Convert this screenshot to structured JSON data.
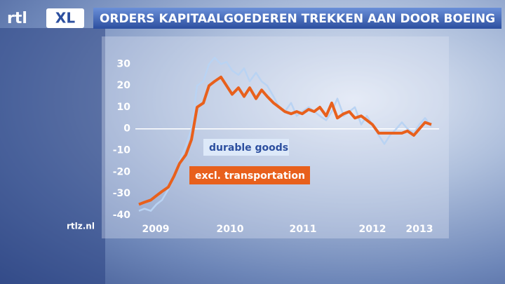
{
  "screen": {
    "logo_main": "rtl",
    "logo_badge": "XL",
    "site": "rtlz.nl"
  },
  "chart_data": {
    "type": "line",
    "title": "ORDERS KAPITAALGOEDEREN TREKKEN AAN DOOR BOEING",
    "x": [
      2009,
      2009.08,
      2009.17,
      2009.25,
      2009.33,
      2009.42,
      2009.5,
      2009.58,
      2009.67,
      2009.75,
      2009.83,
      2009.92,
      2010,
      2010.08,
      2010.17,
      2010.25,
      2010.33,
      2010.42,
      2010.5,
      2010.58,
      2010.67,
      2010.75,
      2010.83,
      2010.92,
      2011,
      2011.08,
      2011.17,
      2011.25,
      2011.33,
      2011.42,
      2011.5,
      2011.58,
      2011.67,
      2011.75,
      2011.83,
      2011.92,
      2012,
      2012.08,
      2012.17,
      2012.25,
      2012.33,
      2012.42,
      2012.5,
      2012.58,
      2012.67,
      2012.75,
      2012.83,
      2012.92,
      2013,
      2013.08,
      2013.17
    ],
    "series": [
      {
        "name": "durable goods",
        "color": "#b9d3f3",
        "values": [
          -38,
          -37,
          -38,
          -35,
          -33,
          -28,
          -22,
          -15,
          -8,
          0,
          20,
          22,
          30,
          33,
          30,
          31,
          27,
          25,
          28,
          22,
          26,
          22,
          20,
          15,
          10,
          8,
          12,
          6,
          8,
          10,
          8,
          6,
          4,
          8,
          14,
          6,
          8,
          10,
          2,
          6,
          2,
          -3,
          -7,
          -3,
          0,
          3,
          0,
          -2,
          2,
          5,
          1
        ]
      },
      {
        "name": "excl. transportation",
        "color": "#e8601c",
        "values": [
          -35,
          -34,
          -33,
          -31,
          -29,
          -27,
          -22,
          -16,
          -12,
          -5,
          10,
          12,
          20,
          22,
          24,
          20,
          16,
          19,
          15,
          19,
          14,
          18,
          15,
          12,
          10,
          8,
          7,
          8,
          7,
          9,
          8,
          10,
          6,
          12,
          5,
          7,
          8,
          5,
          6,
          4,
          2,
          -2,
          -2,
          -2,
          -2,
          -2,
          -1,
          -3,
          0,
          3,
          2
        ]
      }
    ],
    "xlim": [
      2009,
      2013.2
    ],
    "xticks": [
      {
        "value": 2009.24,
        "label": "2009"
      },
      {
        "value": 2010.3,
        "label": "2010"
      },
      {
        "value": 2011.34,
        "label": "2011"
      },
      {
        "value": 2012.33,
        "label": "2012"
      },
      {
        "value": 2013,
        "label": "2013"
      }
    ],
    "ylim": [
      -42,
      35
    ],
    "yticks": [
      -40,
      -30,
      -20,
      -10,
      0,
      10,
      20,
      30
    ],
    "reference_line": 0,
    "grid": false
  }
}
